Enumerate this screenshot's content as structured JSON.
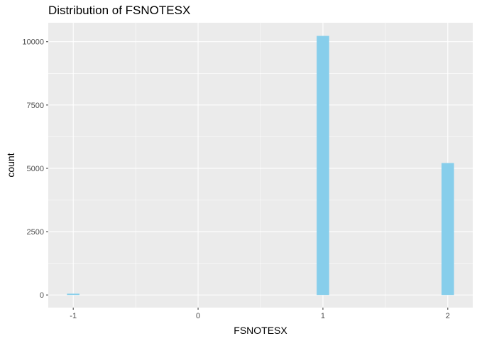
{
  "chart_data": {
    "type": "bar",
    "title": "Distribution of FSNOTESX",
    "xlabel": "FSNOTESX",
    "ylabel": "count",
    "x_ticks": [
      "-1",
      "0",
      "1",
      "2"
    ],
    "y_ticks": [
      "0",
      "2500",
      "5000",
      "7500",
      "10000"
    ],
    "xlim": [
      -1.2,
      2.2
    ],
    "ylim": [
      -500,
      10750
    ],
    "grid": true,
    "bar_color": "#87CEEB",
    "panel_background": "#EBEBEB",
    "bars": [
      {
        "x": -1,
        "value": 50
      },
      {
        "x": 1,
        "value": 10230
      },
      {
        "x": 2,
        "value": 5210
      }
    ]
  }
}
